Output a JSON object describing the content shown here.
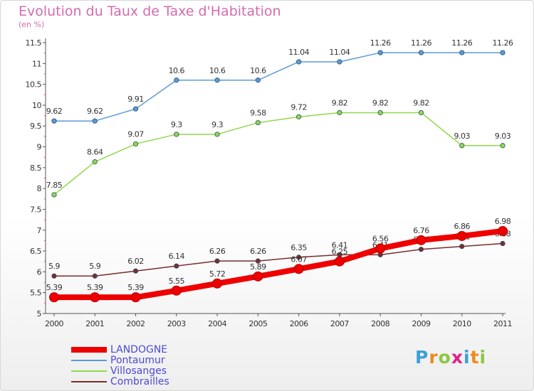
{
  "title": "Evolution du Taux de Taxe d'Habitation",
  "subtitle": "(en %)",
  "brand": {
    "letters": [
      "P",
      "r",
      "o",
      "x",
      "i",
      "t",
      "i"
    ],
    "colors": [
      "#3aa0d9",
      "#f08a1c",
      "#8cc63f",
      "#e0218a",
      "#3aa0d9",
      "#f08a1c",
      "#8cc63f"
    ]
  },
  "chart_data": {
    "type": "line",
    "x": [
      "2000",
      "2001",
      "2002",
      "2003",
      "2004",
      "2005",
      "2006",
      "2007",
      "2008",
      "2009",
      "2010",
      "2011"
    ],
    "ylim": [
      5,
      11.5
    ],
    "yticks": [
      "5",
      "5.5",
      "6",
      "6.5",
      "7",
      "7.5",
      "8",
      "8.5",
      "9",
      "9.5",
      "10",
      "10.5",
      "11",
      "11.5"
    ],
    "grid": false,
    "legend_position": "bottom-left",
    "series": [
      {
        "name": "Pontaumur",
        "color": "#5b9bd5",
        "values": [
          9.62,
          9.62,
          9.91,
          10.6,
          10.6,
          10.6,
          11.04,
          11.04,
          11.26,
          11.26,
          11.26,
          11.26
        ],
        "labels": [
          "9.62",
          "9.62",
          "9.91",
          "10.6",
          "10.6",
          "10.6",
          "11.04",
          "11.04",
          "11.26",
          "11.26",
          "11.26",
          "11.26"
        ]
      },
      {
        "name": "Villosanges",
        "color": "#8fd94a",
        "values": [
          7.85,
          8.64,
          9.07,
          9.3,
          9.3,
          9.58,
          9.72,
          9.82,
          9.82,
          9.82,
          9.03,
          9.03
        ],
        "labels": [
          "7.85",
          "8.64",
          "9.07",
          "9.3",
          "9.3",
          "9.58",
          "9.72",
          "9.82",
          "9.82",
          "9.82",
          "9.03",
          "9.03"
        ]
      },
      {
        "name": "Combrailles",
        "color": "#7b2d2d",
        "values": [
          5.9,
          5.9,
          6.02,
          6.14,
          6.26,
          6.26,
          6.35,
          6.41,
          6.41,
          6.54,
          6.61,
          6.68
        ],
        "labels": [
          "5.9",
          "5.9",
          "6.02",
          "6.14",
          "6.26",
          "6.26",
          "6.35",
          "6.41",
          "6.41",
          "6.54",
          "6.61",
          "6.68"
        ]
      },
      {
        "name": "LANDOGNE",
        "color": "#ee0000",
        "values": [
          5.39,
          5.39,
          5.39,
          5.55,
          5.72,
          5.89,
          6.07,
          6.25,
          6.56,
          6.76,
          6.86,
          6.98
        ],
        "labels": [
          "5.39",
          "5.39",
          "5.39",
          "5.55",
          "5.72",
          "5.89",
          "6.07",
          "6.25",
          "6.56",
          "6.76",
          "6.86",
          "6.98"
        ]
      }
    ],
    "legend": [
      "LANDOGNE",
      "Pontaumur",
      "Villosanges",
      "Combrailles"
    ]
  }
}
